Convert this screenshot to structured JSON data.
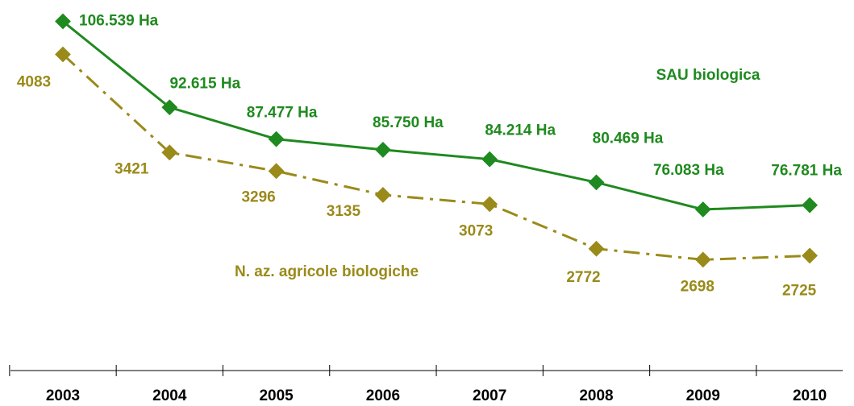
{
  "chart_data": {
    "type": "line",
    "categories": [
      "2003",
      "2004",
      "2005",
      "2006",
      "2007",
      "2008",
      "2009",
      "2010"
    ],
    "series": [
      {
        "name": "SAU biologica",
        "color": "#1f8a1f",
        "axis": "y",
        "values": [
          106539,
          92615,
          87477,
          85750,
          84214,
          80469,
          76083,
          76781
        ],
        "value_labels": [
          "106.539 Ha",
          "92.615 Ha",
          "87.477 Ha",
          "85.750 Ha",
          "84.214 Ha",
          "80.469 Ha",
          "76.083 Ha",
          "76.781 Ha"
        ]
      },
      {
        "name": "N. az. agricole biologiche",
        "color": "#9a8a1a",
        "axis": "y2",
        "values": [
          4083,
          3421,
          3296,
          3135,
          3073,
          2772,
          2698,
          2725
        ]
      }
    ],
    "ylim": [
      50000,
      110000
    ],
    "y2lim": [
      1950,
      4450
    ]
  }
}
